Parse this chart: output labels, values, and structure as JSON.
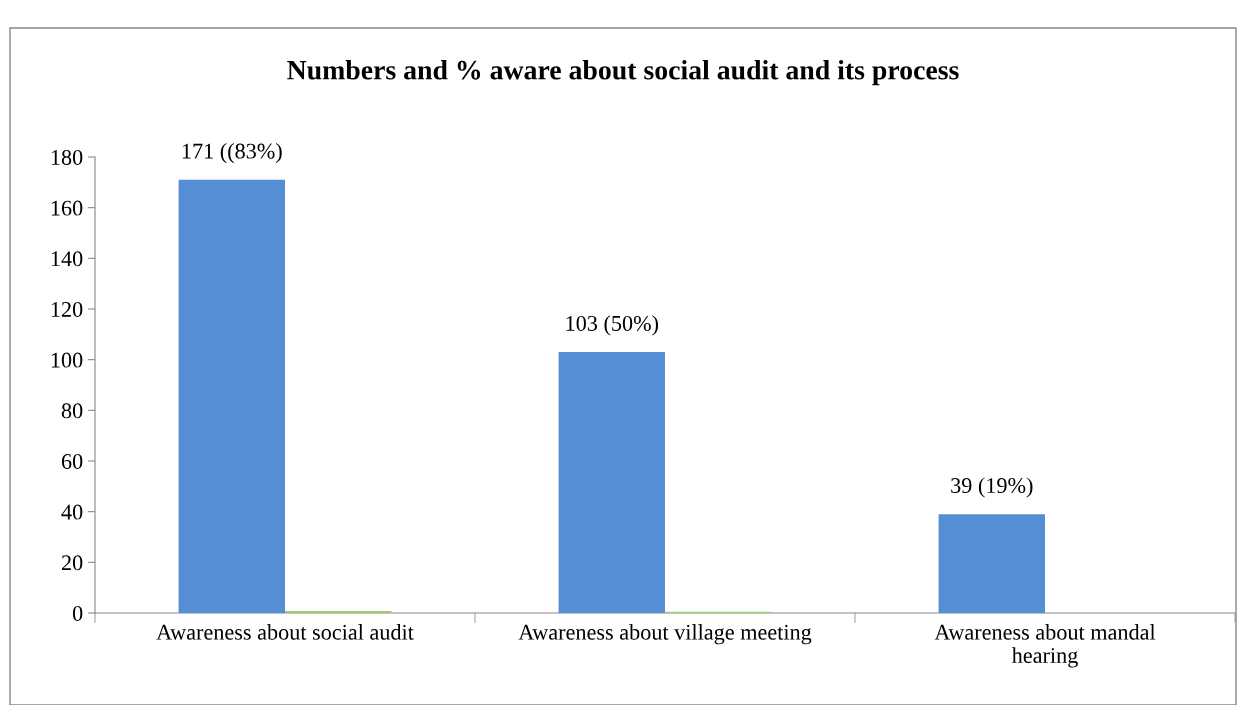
{
  "chart_data": {
    "type": "bar",
    "title": "Numbers and % aware about social audit and its process",
    "categories": [
      "Awareness about social audit",
      "Awareness about village meeting",
      "Awareness about mandal\nhearing"
    ],
    "series": [
      {
        "color": "#558ed5",
        "values": [
          171,
          103,
          39
        ],
        "value_labels": [
          "171 ((83%)",
          "103 (50%)",
          "39 (19%)"
        ]
      },
      {
        "color": "#9bd164",
        "values": [
          0.8,
          0.5,
          null
        ]
      }
    ],
    "ylim": [
      0,
      180
    ],
    "yticks": [
      0,
      20,
      40,
      60,
      80,
      100,
      120,
      140,
      160,
      180
    ],
    "grid": false,
    "legend": false
  }
}
